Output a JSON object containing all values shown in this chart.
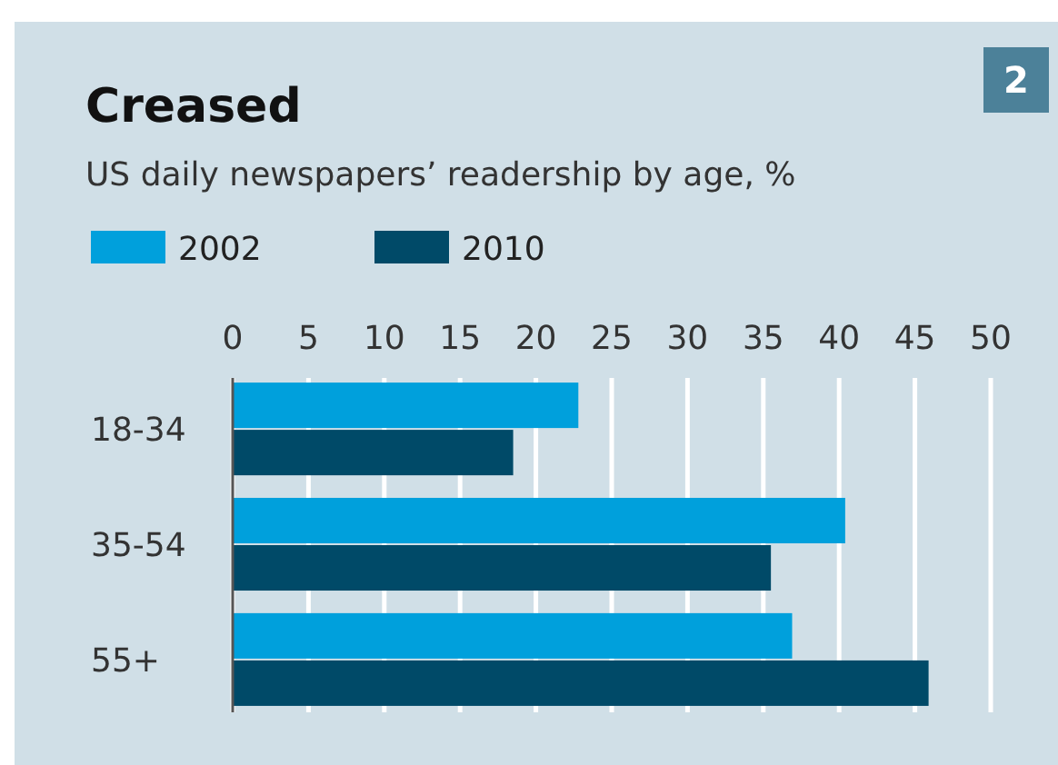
{
  "chart_data": {
    "type": "bar",
    "orientation": "horizontal",
    "title": "Creased",
    "subtitle": "US daily newspapers’ readership by age, %",
    "categories": [
      "18-34",
      "35-54",
      "55+"
    ],
    "series": [
      {
        "name": "2002",
        "color": "#00a0dc",
        "values": [
          22.8,
          40.4,
          36.9
        ]
      },
      {
        "name": "2010",
        "color": "#004a68",
        "values": [
          18.5,
          35.5,
          45.9
        ]
      }
    ],
    "xlim": [
      0,
      50
    ],
    "xticks": [
      0,
      5,
      10,
      15,
      20,
      25,
      30,
      35,
      40,
      45,
      50
    ],
    "grid": "x",
    "legend": "top left",
    "annotations": [
      "2"
    ]
  }
}
